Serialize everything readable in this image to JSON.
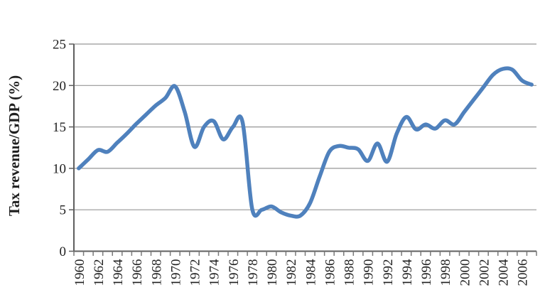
{
  "chart_data": {
    "type": "line",
    "title": "",
    "ylabel": "Tax revenue/GDP (%)",
    "xlabel": "",
    "legend_position": "none",
    "grid": "horizontal",
    "smooth": true,
    "ylim": [
      0,
      25
    ],
    "yticks": [
      0,
      5,
      10,
      15,
      20,
      25
    ],
    "xtick_labels": [
      "1960",
      "1962",
      "1964",
      "1966",
      "1968",
      "1970",
      "1972",
      "1974",
      "1976",
      "1978",
      "1980",
      "1982",
      "1984",
      "1986",
      "1988",
      "1990",
      "1992",
      "1994",
      "1996",
      "1998",
      "2000",
      "2002",
      "2004",
      "2006"
    ],
    "xtick_label_interval": 2,
    "series": [
      {
        "name": "Tax revenue/GDP (%)",
        "x": [
          1960,
          1961,
          1962,
          1963,
          1964,
          1965,
          1966,
          1967,
          1968,
          1969,
          1970,
          1971,
          1972,
          1973,
          1974,
          1975,
          1976,
          1977,
          1978,
          1979,
          1980,
          1981,
          1982,
          1983,
          1984,
          1985,
          1986,
          1987,
          1988,
          1989,
          1990,
          1991,
          1992,
          1993,
          1994,
          1995,
          1996,
          1997,
          1998,
          1999,
          2000,
          2001,
          2002,
          2003,
          2004,
          2005,
          2006,
          2007
        ],
        "values": [
          10.0,
          11.1,
          12.2,
          12.0,
          13.1,
          14.2,
          15.4,
          16.5,
          17.6,
          18.5,
          19.9,
          16.8,
          12.6,
          15.0,
          15.7,
          13.5,
          15.0,
          15.6,
          5.1,
          5.0,
          5.4,
          4.7,
          4.3,
          4.3,
          5.8,
          9.0,
          12.0,
          12.7,
          12.5,
          12.3,
          10.9,
          13.0,
          10.8,
          14.2,
          16.2,
          14.7,
          15.3,
          14.8,
          15.8,
          15.3,
          16.8,
          18.3,
          19.8,
          21.3,
          22.0,
          21.9,
          20.6,
          20.1
        ]
      }
    ],
    "colors": {
      "line": "#4F81BD",
      "gridline": "#969696",
      "axis": "#5f5f5f",
      "tick": "#7a7a7a",
      "text": "#1f1f1f",
      "background": "#FFFFFF"
    }
  }
}
